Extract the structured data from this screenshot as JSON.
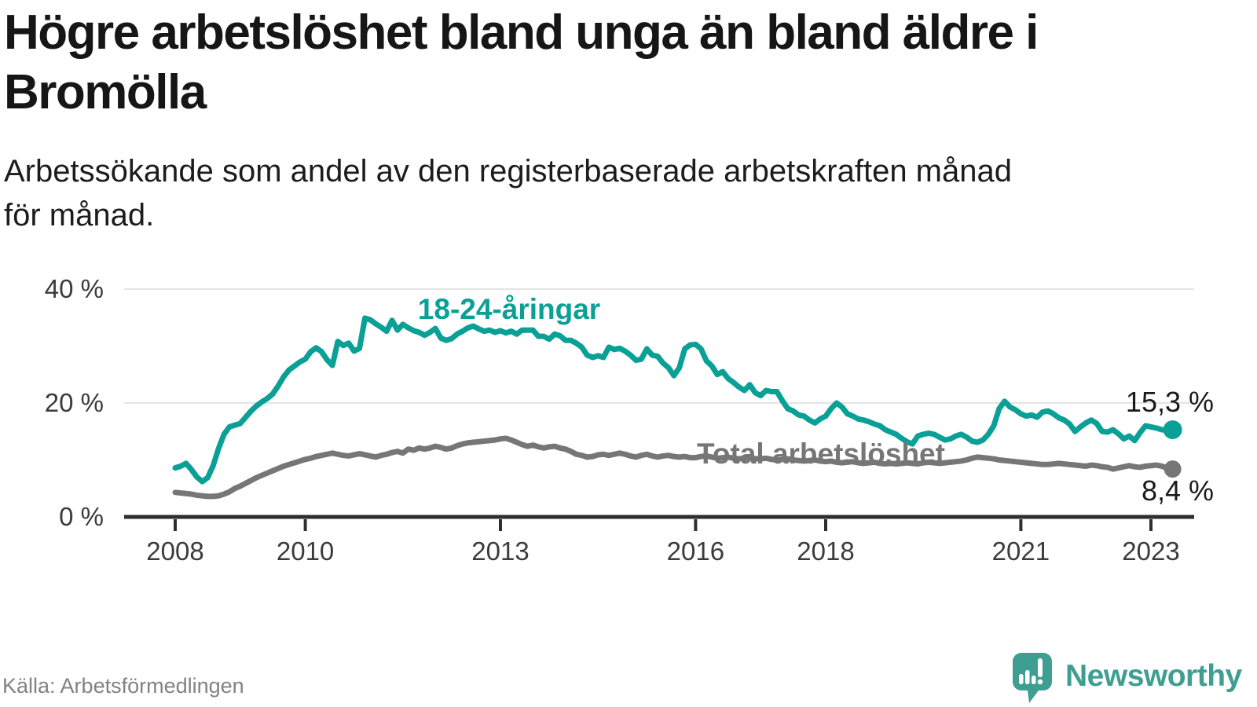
{
  "header": {
    "title": "Högre arbetslöshet bland unga än bland äldre i Bromölla",
    "title_lines": [
      "Högre arbetslöshet bland unga än bland äldre i",
      "Bromölla"
    ],
    "subtitle_lines": [
      "Arbetssökande som andel av den registerbaserade arbetskraften månad",
      "för månad."
    ]
  },
  "footer": {
    "source": "Källa: Arbetsförmedlingen",
    "brand": "Newsworthy"
  },
  "colors": {
    "young_line": "#0aa096",
    "total_line": "#767676",
    "gridline": "#e4e4e4",
    "axis": "#2e2e2e",
    "text_dark": "#161616",
    "axis_text": "#3b3b3b",
    "brand_teal": "#3f9e92"
  },
  "chart_data": {
    "type": "line",
    "title": "Högre arbetslöshet bland unga än bland äldre i Bromölla",
    "subtitle": "Arbetssökande som andel av den registerbaserade arbetskraften månad för månad.",
    "unit": "%",
    "frequency": "monthly",
    "x_start": "2008-01",
    "x_end": "2023-05",
    "grid": "horizontal",
    "legend": "inline-labels",
    "x_axis": {
      "ticks": [
        2008,
        2010,
        2013,
        2016,
        2018,
        2021,
        2023
      ],
      "range": [
        2007.2,
        2023.66
      ]
    },
    "y_axis": {
      "ticks": [
        0,
        20,
        40
      ],
      "tick_labels": [
        "0 %",
        "20 %",
        "40 %"
      ],
      "range": [
        0,
        42
      ]
    },
    "series": [
      {
        "name": "18-24-åringar",
        "color": "#0aa096",
        "end_label": "15,3 %",
        "end_value": 15.3,
        "values": [
          8.6,
          8.9,
          9.4,
          8.3,
          7.0,
          6.2,
          6.9,
          9.0,
          12.0,
          14.5,
          15.8,
          16.1,
          16.4,
          17.5,
          18.6,
          19.5,
          20.2,
          20.8,
          21.6,
          23.0,
          24.6,
          25.8,
          26.5,
          27.2,
          27.7,
          29.0,
          29.7,
          29.0,
          27.6,
          26.6,
          30.8,
          30.1,
          30.5,
          29.1,
          29.6,
          34.9,
          34.6,
          33.9,
          33.3,
          32.6,
          34.5,
          32.8,
          33.8,
          33.2,
          32.7,
          32.4,
          31.9,
          32.4,
          33.1,
          31.4,
          31.0,
          31.3,
          32.1,
          32.6,
          33.2,
          33.5,
          33.0,
          32.6,
          32.8,
          32.4,
          32.7,
          32.3,
          32.6,
          32.1,
          32.8,
          32.8,
          32.8,
          31.7,
          31.7,
          31.2,
          32.1,
          31.8,
          31.0,
          31.0,
          30.5,
          29.8,
          28.4,
          28.0,
          28.3,
          28.0,
          29.8,
          29.4,
          29.6,
          29.1,
          28.4,
          27.5,
          27.7,
          29.5,
          28.4,
          28.2,
          27.0,
          26.2,
          24.8,
          26.2,
          29.5,
          30.2,
          30.3,
          29.5,
          27.4,
          26.5,
          25.0,
          25.5,
          24.3,
          23.6,
          22.8,
          22.2,
          23.2,
          21.8,
          21.3,
          22.2,
          22.0,
          22.0,
          20.4,
          19.0,
          18.6,
          17.9,
          17.7,
          17.0,
          16.5,
          17.2,
          17.7,
          19.0,
          20.0,
          19.3,
          18.1,
          17.7,
          17.2,
          17.0,
          16.7,
          16.3,
          16.0,
          15.3,
          14.9,
          14.5,
          13.8,
          13.2,
          12.8,
          14.2,
          14.5,
          14.7,
          14.5,
          14.0,
          13.5,
          13.7,
          14.2,
          14.5,
          14.0,
          13.3,
          13.1,
          13.5,
          14.5,
          16.0,
          19.0,
          20.3,
          19.3,
          18.8,
          18.1,
          17.7,
          17.9,
          17.5,
          18.4,
          18.6,
          18.1,
          17.4,
          17.0,
          16.3,
          15.0,
          15.8,
          16.5,
          17.0,
          16.4,
          15.0,
          14.9,
          15.3,
          14.6,
          13.7,
          14.2,
          13.4,
          14.8,
          16.0,
          15.8,
          15.6,
          15.3,
          15.3,
          15.3
        ]
      },
      {
        "name": "Total arbetslöshet",
        "color": "#767676",
        "end_label": "8,4 %",
        "end_value": 8.4,
        "values": [
          4.3,
          4.2,
          4.1,
          4.0,
          3.8,
          3.7,
          3.6,
          3.6,
          3.7,
          4.0,
          4.4,
          5.0,
          5.4,
          5.9,
          6.4,
          6.9,
          7.3,
          7.7,
          8.1,
          8.5,
          8.9,
          9.2,
          9.5,
          9.8,
          10.1,
          10.3,
          10.6,
          10.8,
          11.0,
          11.2,
          11.0,
          10.8,
          10.7,
          10.9,
          11.1,
          10.9,
          10.7,
          10.5,
          10.8,
          11.0,
          11.3,
          11.5,
          11.2,
          11.9,
          11.7,
          12.1,
          11.9,
          12.1,
          12.4,
          12.2,
          11.9,
          12.1,
          12.5,
          12.8,
          13.0,
          13.1,
          13.2,
          13.3,
          13.4,
          13.5,
          13.7,
          13.8,
          13.5,
          13.1,
          12.7,
          12.4,
          12.6,
          12.3,
          12.1,
          12.3,
          12.4,
          12.1,
          11.9,
          11.5,
          11.0,
          10.8,
          10.5,
          10.6,
          10.9,
          11.0,
          10.8,
          11.0,
          11.2,
          11.0,
          10.7,
          10.5,
          10.8,
          11.0,
          10.7,
          10.5,
          10.7,
          10.8,
          10.6,
          10.5,
          10.6,
          10.4,
          10.4,
          10.6,
          10.7,
          10.5,
          10.3,
          10.4,
          10.5,
          10.3,
          10.2,
          10.3,
          10.4,
          10.2,
          10.2,
          10.3,
          10.1,
          10.0,
          10.1,
          10.2,
          10.0,
          9.9,
          9.8,
          9.9,
          10.0,
          9.8,
          9.7,
          9.8,
          9.6,
          9.5,
          9.6,
          9.7,
          9.5,
          9.4,
          9.5,
          9.6,
          9.4,
          9.3,
          9.4,
          9.3,
          9.4,
          9.5,
          9.4,
          9.3,
          9.5,
          9.6,
          9.5,
          9.4,
          9.5,
          9.6,
          9.7,
          9.8,
          10.0,
          10.3,
          10.5,
          10.4,
          10.3,
          10.2,
          10.0,
          9.9,
          9.8,
          9.7,
          9.6,
          9.5,
          9.4,
          9.3,
          9.2,
          9.2,
          9.3,
          9.4,
          9.3,
          9.2,
          9.1,
          9.0,
          8.9,
          9.1,
          9.0,
          8.8,
          8.7,
          8.4,
          8.6,
          8.8,
          9.0,
          8.8,
          8.7,
          8.9,
          9.0,
          9.1,
          8.9,
          8.6,
          8.4
        ]
      }
    ]
  }
}
